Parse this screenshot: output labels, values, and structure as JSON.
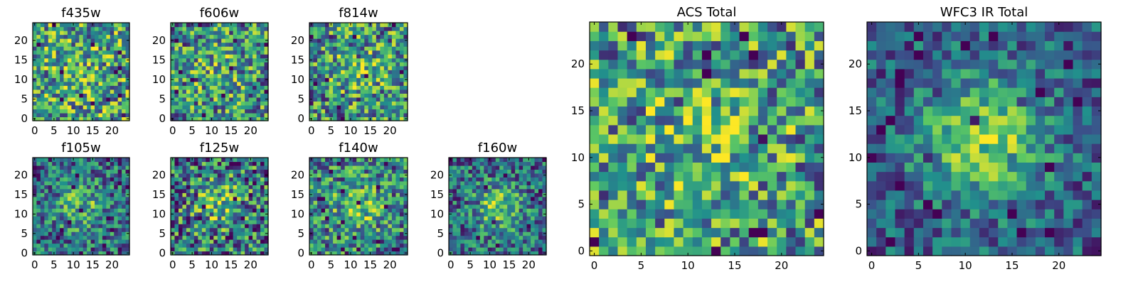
{
  "figure": {
    "colormap": "viridis",
    "colors": [
      "#440154",
      "#3b528b",
      "#21918c",
      "#5ec962",
      "#fde725"
    ],
    "frame_color": "#000000"
  },
  "chart_data": [
    {
      "type": "heatmap",
      "title": "f435w",
      "grid": [
        25,
        25
      ],
      "xlim": [
        0,
        24
      ],
      "ylim": [
        0,
        24
      ],
      "xticks": [
        0,
        5,
        10,
        15,
        20
      ],
      "yticks": [
        0,
        5,
        10,
        15,
        20
      ],
      "signal": "weak, noise-dominated"
    },
    {
      "type": "heatmap",
      "title": "f606w",
      "grid": [
        25,
        25
      ],
      "xlim": [
        0,
        24
      ],
      "ylim": [
        0,
        24
      ],
      "xticks": [
        0,
        5,
        10,
        15,
        20
      ],
      "yticks": [
        0,
        5,
        10,
        15,
        20
      ],
      "signal": "faint central source"
    },
    {
      "type": "heatmap",
      "title": "f814w",
      "grid": [
        25,
        25
      ],
      "xlim": [
        0,
        24
      ],
      "ylim": [
        0,
        24
      ],
      "xticks": [
        0,
        5,
        10,
        15,
        20
      ],
      "yticks": [
        0,
        5,
        10,
        15,
        20
      ],
      "signal": "faint central source"
    },
    {
      "type": "heatmap",
      "title": "f105w",
      "grid": [
        25,
        25
      ],
      "xlim": [
        0,
        24
      ],
      "ylim": [
        0,
        24
      ],
      "xticks": [
        0,
        5,
        10,
        15,
        20
      ],
      "yticks": [
        0,
        5,
        10,
        15,
        20
      ],
      "signal": "central source"
    },
    {
      "type": "heatmap",
      "title": "f125w",
      "grid": [
        25,
        25
      ],
      "xlim": [
        0,
        24
      ],
      "ylim": [
        0,
        24
      ],
      "xticks": [
        0,
        5,
        10,
        15,
        20
      ],
      "yticks": [
        0,
        5,
        10,
        15,
        20
      ],
      "signal": "central source"
    },
    {
      "type": "heatmap",
      "title": "f140w",
      "grid": [
        25,
        25
      ],
      "xlim": [
        0,
        24
      ],
      "ylim": [
        0,
        24
      ],
      "xticks": [
        0,
        5,
        10,
        15,
        20
      ],
      "yticks": [
        0,
        5,
        10,
        15,
        20
      ],
      "signal": "central source"
    },
    {
      "type": "heatmap",
      "title": "f160w",
      "grid": [
        25,
        25
      ],
      "xlim": [
        0,
        24
      ],
      "ylim": [
        0,
        24
      ],
      "xticks": [
        0,
        5,
        10,
        15,
        20
      ],
      "yticks": [
        0,
        5,
        10,
        15,
        20
      ],
      "signal": "central source"
    },
    {
      "type": "heatmap",
      "title": "ACS Total",
      "grid": [
        25,
        25
      ],
      "xlim": [
        0,
        24
      ],
      "ylim": [
        0,
        24
      ],
      "xticks": [
        0,
        5,
        10,
        15,
        20
      ],
      "yticks": [
        0,
        5,
        10,
        15,
        20
      ],
      "signal": "faint central source"
    },
    {
      "type": "heatmap",
      "title": "WFC3 IR Total",
      "grid": [
        25,
        25
      ],
      "xlim": [
        0,
        24
      ],
      "ylim": [
        0,
        24
      ],
      "xticks": [
        0,
        5,
        10,
        15,
        20
      ],
      "yticks": [
        0,
        5,
        10,
        15,
        20
      ],
      "signal": "bright central source centred near (12, 12)"
    }
  ]
}
